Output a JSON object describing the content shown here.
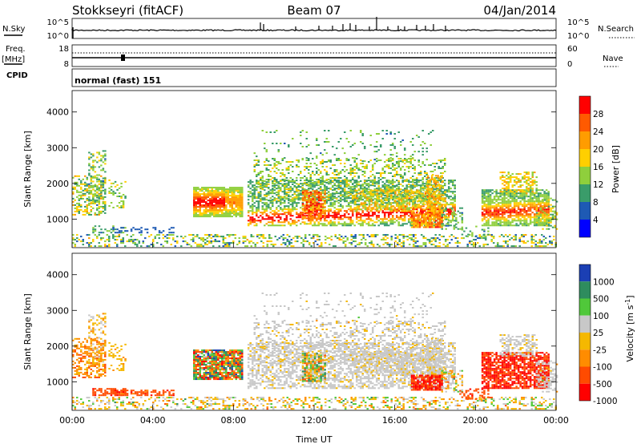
{
  "header": {
    "station": "Stokkseyri (fitACF)",
    "beam": "Beam 07",
    "date": "04/Jan/2014"
  },
  "panel_labels": {
    "nsky": "N.Sky",
    "nsearch": "N.Search",
    "freq": "Freq.",
    "freq_unit": "[MHz]",
    "cpid": "CPID",
    "nave": "Nave",
    "cpid_value": "normal (fast) 151"
  },
  "noise_axis": {
    "left": [
      "10^5",
      "10^0"
    ],
    "right": [
      "10^5",
      "10^0"
    ]
  },
  "freq_axis": {
    "left": [
      "18",
      "8"
    ],
    "right": [
      "60",
      "0"
    ]
  },
  "chart_data": [
    {
      "type": "heatmap",
      "id": "power",
      "ylabel": "Slant Range [km]",
      "yticks": [
        1000,
        2000,
        3000,
        4000
      ],
      "ylim": [
        200,
        4600
      ],
      "xlim": [
        0,
        24
      ],
      "colorbar": {
        "label": "Power [dB]",
        "ticks": [
          "28",
          "24",
          "20",
          "16",
          "12",
          "8",
          "4"
        ],
        "colors": [
          "#ff0000",
          "#ff5a00",
          "#ff9c00",
          "#ffcf00",
          "#8fcf3c",
          "#3a9c6a",
          "#1e5ab4",
          "#0000ff"
        ]
      }
    },
    {
      "type": "heatmap",
      "id": "velocity",
      "ylabel": "Slant Range [km]",
      "yticks": [
        1000,
        2000,
        3000,
        4000
      ],
      "ylim": [
        200,
        4600
      ],
      "xlim": [
        0,
        24
      ],
      "xlabel": "Time UT",
      "xticks": [
        "00:00",
        "04:00",
        "08:00",
        "12:00",
        "16:00",
        "20:00",
        "00:00"
      ],
      "colorbar": {
        "label": "Velocity [m s",
        "label_sup": "-1",
        "label_end": "]",
        "ticks": [
          "1000",
          "500",
          "100",
          "25",
          "-25",
          "-100",
          "-500",
          "-1000"
        ],
        "colors": [
          "#1b3fb4",
          "#2e8c5e",
          "#50c83a",
          "#c8c8c8",
          "#f5b800",
          "#ff8c00",
          "#ff4b00",
          "#ff0000"
        ]
      }
    }
  ],
  "colors": {
    "velocity_ground": "#c8c8c8",
    "power_strong": "#ff0000",
    "power_weak": "#1e50c8"
  }
}
